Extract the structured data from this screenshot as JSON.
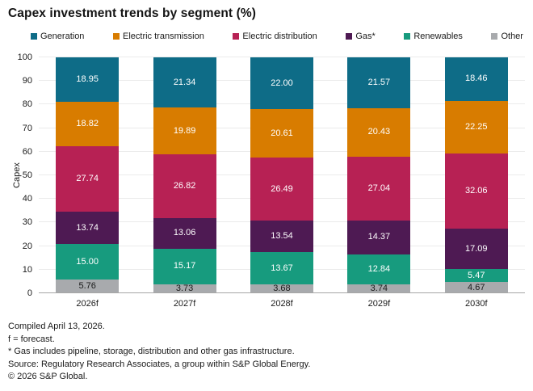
{
  "title": "Capex investment trends by segment (%)",
  "chart_data": {
    "type": "bar",
    "stacked": true,
    "title": "Capex investment trends by segment (%)",
    "categories": [
      "2026f",
      "2027f",
      "2028f",
      "2029f",
      "2030f"
    ],
    "series": [
      {
        "name": "Generation",
        "color": "#0E6C87",
        "label_color": "#FFFFFF",
        "values": [
          18.95,
          21.34,
          22.0,
          21.57,
          18.46
        ]
      },
      {
        "name": "Electric transmission",
        "color": "#D87C00",
        "label_color": "#FFFFFF",
        "values": [
          18.82,
          19.89,
          20.61,
          20.43,
          22.25
        ]
      },
      {
        "name": "Electric distribution",
        "color": "#B72154",
        "label_color": "#FFFFFF",
        "values": [
          27.74,
          26.82,
          26.49,
          27.04,
          32.06
        ]
      },
      {
        "name": "Gas*",
        "color": "#4E1A53",
        "label_color": "#FFFFFF",
        "values": [
          13.74,
          13.06,
          13.54,
          14.37,
          17.09
        ]
      },
      {
        "name": "Renewables",
        "color": "#179B7E",
        "label_color": "#FFFFFF",
        "values": [
          15.0,
          15.17,
          13.67,
          12.84,
          5.47
        ]
      },
      {
        "name": "Other",
        "color": "#A8AAAD",
        "label_color": "#1A1A1A",
        "values": [
          5.76,
          3.73,
          3.68,
          3.74,
          4.67
        ]
      }
    ],
    "xlabel": "",
    "ylabel": "Capex",
    "ylim": [
      0,
      100
    ],
    "ytick_step": 10,
    "value_label_format": "2dp",
    "legend_position": "top",
    "grid": true
  },
  "footer": {
    "lines": [
      "Compiled April 13, 2026.",
      "f = forecast.",
      "* Gas includes pipeline, storage, distribution and other gas infrastructure.",
      "Source: Regulatory Research Associates, a group within S&P Global Energy.",
      "© 2026 S&P Global."
    ]
  }
}
